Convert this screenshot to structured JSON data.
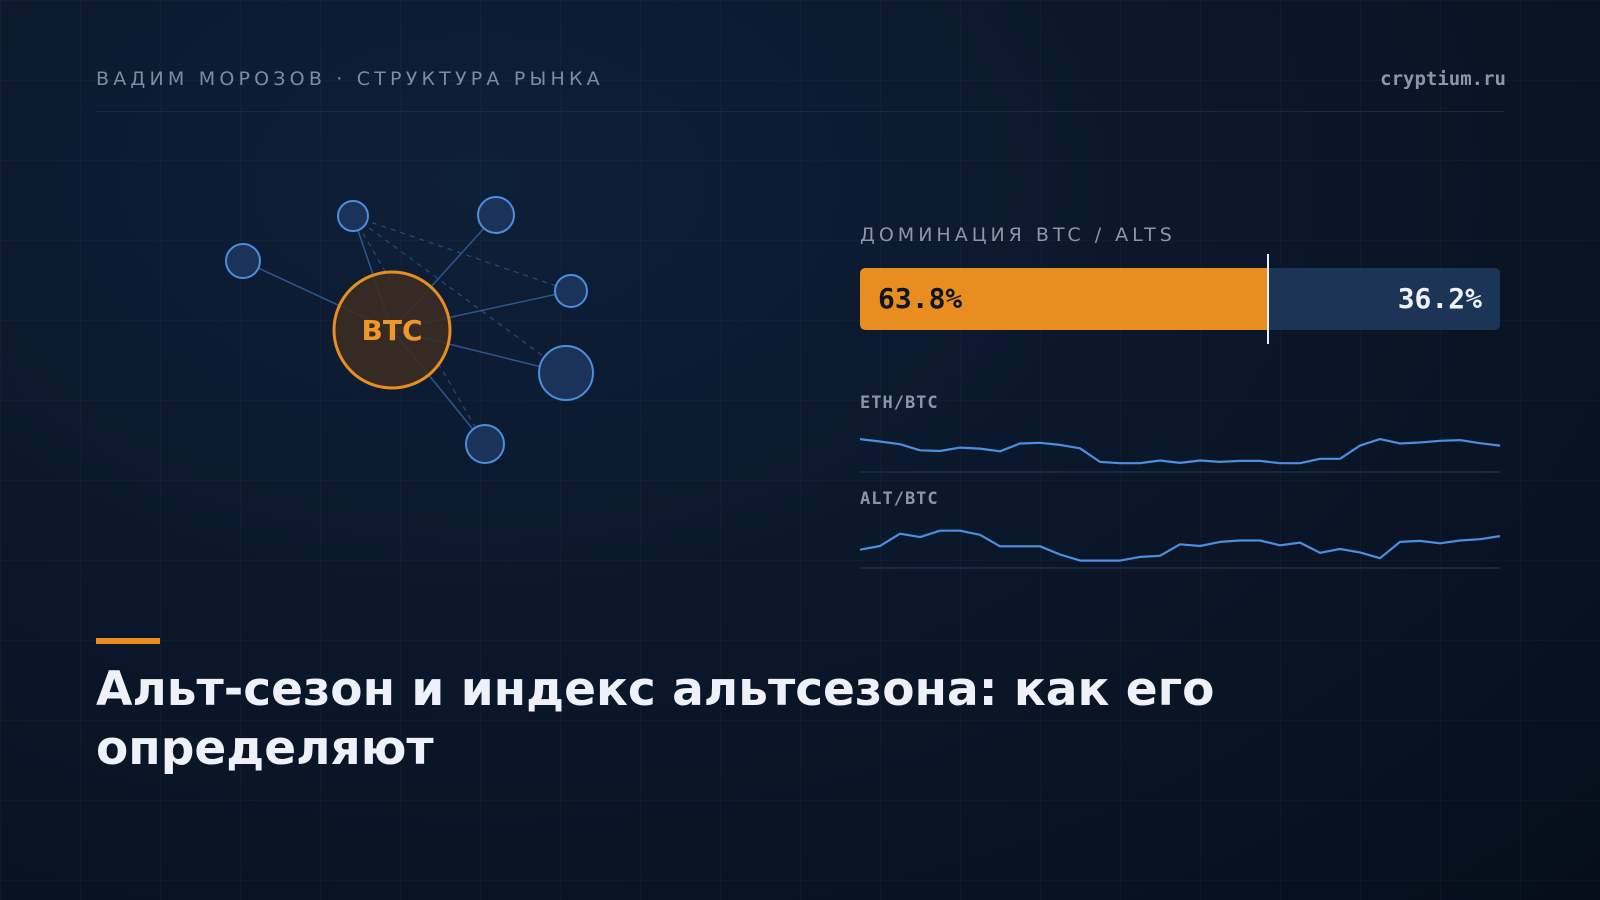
{
  "header": {
    "kicker": "ВАДИМ МОРОЗОВ · СТРУКТУРА РЫНКА",
    "site": "cryptium.ru"
  },
  "network": {
    "center_label": "BTC"
  },
  "dominance": {
    "label": "ДОМИНАЦИЯ BTC / ALTS",
    "btc_percent": 63.8,
    "btc_label": "63.8%",
    "alts_label": "36.2%"
  },
  "sparklines": [
    {
      "label": "ETH/BTC",
      "values": [
        0.85,
        0.78,
        0.7,
        0.52,
        0.5,
        0.6,
        0.57,
        0.49,
        0.72,
        0.74,
        0.68,
        0.58,
        0.18,
        0.14,
        0.14,
        0.22,
        0.15,
        0.22,
        0.18,
        0.21,
        0.21,
        0.14,
        0.14,
        0.27,
        0.27,
        0.66,
        0.85,
        0.72,
        0.75,
        0.8,
        0.82,
        0.73,
        0.66
      ]
    },
    {
      "label": "ALT/BTC",
      "values": [
        0.42,
        0.53,
        0.89,
        0.79,
        0.98,
        0.98,
        0.86,
        0.52,
        0.52,
        0.52,
        0.28,
        0.1,
        0.1,
        0.1,
        0.21,
        0.24,
        0.58,
        0.53,
        0.65,
        0.69,
        0.69,
        0.55,
        0.63,
        0.33,
        0.44,
        0.34,
        0.17,
        0.65,
        0.68,
        0.61,
        0.69,
        0.73,
        0.82
      ]
    }
  ],
  "colors": {
    "accent": "#e88d20",
    "node": "#4a8fe0",
    "spark": "#4a8fe0",
    "alts_bar": "#1c3556"
  },
  "headline": {
    "title": "Альт-сезон и индекс альтсезона: как его определяют"
  }
}
